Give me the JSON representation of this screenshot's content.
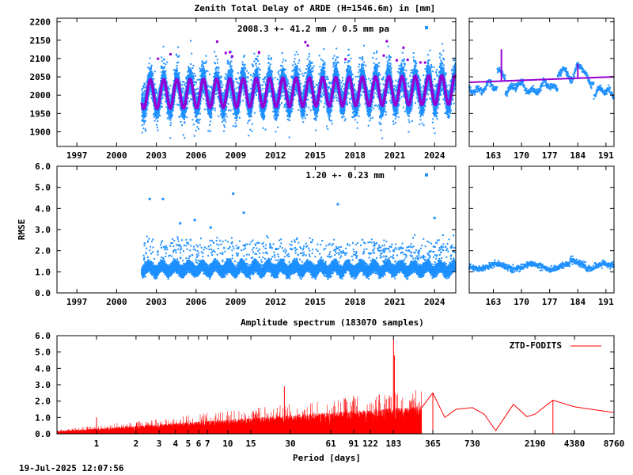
{
  "figure": {
    "title": "Zenith Total Delay of ARDE (H=1546.6m) in [mm]",
    "timestamp": "19-Jul-2025 12:07:56"
  },
  "colors": {
    "observations": "#1e90ff",
    "model": "#9400d3",
    "spectrum": "#ff0000",
    "axis": "#000000"
  },
  "chart_data": [
    {
      "id": "ztd",
      "type": "scatter",
      "title": "Zenith Total Delay of ARDE (H=1546.6m) in [mm]",
      "annotation": "2008.3 +-  41.2 mm /  0.5 mm pa",
      "x_ticks": [
        "1997",
        "2000",
        "2003",
        "2006",
        "2009",
        "2012",
        "2015",
        "2018",
        "2021",
        "2024"
      ],
      "xlim": [
        1995.5,
        2025.6
      ],
      "y_ticks": [
        "1900",
        "1950",
        "2000",
        "2050",
        "2100",
        "2150",
        "2200"
      ],
      "ylim": [
        1860,
        2210
      ],
      "data_start": 2001.9,
      "mean": 2008.3,
      "annual_amplitude": 41.2,
      "trend_mm_per_year": 0.5,
      "series": [
        {
          "role": "observations",
          "color": "#1e90ff"
        },
        {
          "role": "model",
          "color": "#9400d3"
        }
      ]
    },
    {
      "id": "ztd_recent",
      "type": "scatter",
      "x_ticks": [
        "163",
        "170",
        "177",
        "184",
        "191"
      ],
      "xlim": [
        157,
        193
      ],
      "ylim": [
        1860,
        2210
      ],
      "series": [
        {
          "role": "observations",
          "color": "#1e90ff"
        },
        {
          "role": "model",
          "color": "#9400d3"
        }
      ]
    },
    {
      "id": "rmse",
      "type": "scatter",
      "ylabel": "RMSE",
      "annotation": "1.20 +-  0.23 mm",
      "x_ticks": [
        "1997",
        "2000",
        "2003",
        "2006",
        "2009",
        "2012",
        "2015",
        "2018",
        "2021",
        "2024"
      ],
      "xlim": [
        1995.5,
        2025.6
      ],
      "y_ticks": [
        "0.0",
        "1.0",
        "2.0",
        "3.0",
        "4.0",
        "5.0",
        "6.0"
      ],
      "ylim": [
        0,
        6
      ],
      "data_start": 2001.9,
      "mean": 1.2,
      "std": 0.23,
      "outliers": [
        {
          "x": 2002.5,
          "y": 4.45
        },
        {
          "x": 2003.5,
          "y": 4.45
        },
        {
          "x": 2008.8,
          "y": 4.7
        },
        {
          "x": 2009.6,
          "y": 3.8
        },
        {
          "x": 2016.7,
          "y": 4.2
        },
        {
          "x": 2024.0,
          "y": 3.55
        },
        {
          "x": 2005.9,
          "y": 3.45
        },
        {
          "x": 2004.8,
          "y": 3.3
        },
        {
          "x": 2007.1,
          "y": 3.1
        }
      ]
    },
    {
      "id": "rmse_recent",
      "type": "scatter",
      "x_ticks": [
        "163",
        "170",
        "177",
        "184",
        "191"
      ],
      "xlim": [
        157,
        193
      ],
      "ylim": [
        0,
        6
      ]
    },
    {
      "id": "spectrum",
      "type": "line",
      "title": "Amplitude spectrum (183070 samples)",
      "xlabel": "Period [days]",
      "x_scale": "log",
      "xlim": [
        0.5,
        8760
      ],
      "x_ticks": [
        "1",
        "2",
        "3",
        "4",
        "5",
        "6",
        "7",
        "10",
        "15",
        "30",
        "61",
        "91",
        "122",
        "183",
        "365",
        "730",
        "2190",
        "4380",
        "8760"
      ],
      "y_ticks": [
        "0.0",
        "1.0",
        "2.0",
        "3.0",
        "4.0",
        "5.0",
        "6.0"
      ],
      "ylim": [
        0,
        6
      ],
      "legend": {
        "label": "ZTD-FODITS",
        "position": "top-right"
      },
      "peaks": [
        {
          "period": 1,
          "amplitude": 1.0
        },
        {
          "period": 183,
          "amplitude": 5.8
        },
        {
          "period": 186,
          "amplitude": 4.8
        },
        {
          "period": 27,
          "amplitude": 2.9
        },
        {
          "period": 91,
          "amplitude": 2.3
        },
        {
          "period": 365,
          "amplitude": 2.5
        },
        {
          "period": 3000,
          "amplitude": 2.05
        }
      ],
      "long_period_points": [
        {
          "period": 300,
          "amplitude": 1.6
        },
        {
          "period": 365,
          "amplitude": 2.5
        },
        {
          "period": 450,
          "amplitude": 1.0
        },
        {
          "period": 550,
          "amplitude": 1.5
        },
        {
          "period": 730,
          "amplitude": 1.6
        },
        {
          "period": 900,
          "amplitude": 1.2
        },
        {
          "period": 1100,
          "amplitude": 0.2
        },
        {
          "period": 1500,
          "amplitude": 1.8
        },
        {
          "period": 1900,
          "amplitude": 1.05
        },
        {
          "period": 2190,
          "amplitude": 1.2
        },
        {
          "period": 3000,
          "amplitude": 2.05
        },
        {
          "period": 4380,
          "amplitude": 1.65
        },
        {
          "period": 8760,
          "amplitude": 1.3
        }
      ]
    }
  ]
}
